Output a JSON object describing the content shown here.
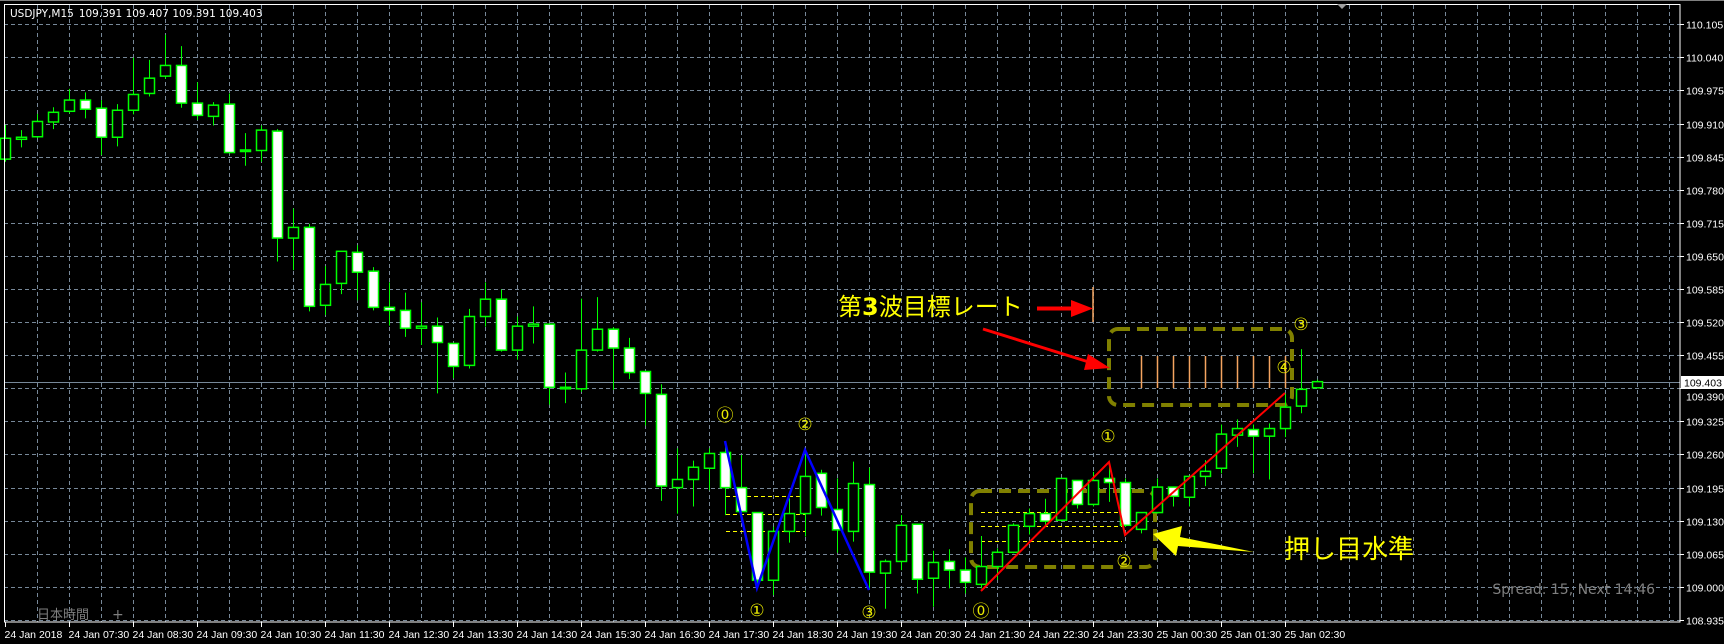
{
  "header": {
    "symbol": "USDJPY,M15",
    "ohlc_readout": "109.391 109.407 109.391 109.403"
  },
  "footer": {
    "timezone_label": "日本時間",
    "add_tab": "+",
    "spread_info": "Spread: 15, Next 14:46"
  },
  "colors": {
    "background": "#000000",
    "grid": "#778899",
    "candle_outline": "#00ff00",
    "bull_body": "#000000",
    "bear_body": "#ffffff",
    "price_line": "#778899",
    "wave_blue": "#0000ff",
    "wave_red": "#ff0000",
    "box": "#808000",
    "level_lines": "#ffff00",
    "target_lines": "#f4a460",
    "label_text": "#ffff00"
  },
  "chart_data": {
    "type": "candlestick",
    "symbol": "USDJPY",
    "timeframe": "M15",
    "grid": true,
    "ylim": [
      108.935,
      110.105
    ],
    "current_price": "109.403",
    "yticks": [
      "110.105",
      "110.040",
      "109.975",
      "109.910",
      "109.845",
      "109.780",
      "109.715",
      "109.650",
      "109.585",
      "109.520",
      "109.455",
      "109.390",
      "109.325",
      "109.260",
      "109.195",
      "109.130",
      "109.065",
      "109.000",
      "108.935"
    ],
    "xticks": [
      "24 Jan 2018",
      "24 Jan 07:30",
      "24 Jan 08:30",
      "24 Jan 09:30",
      "24 Jan 10:30",
      "24 Jan 11:30",
      "24 Jan 12:30",
      "24 Jan 13:30",
      "24 Jan 14:30",
      "24 Jan 15:30",
      "24 Jan 16:30",
      "24 Jan 17:30",
      "24 Jan 18:30",
      "24 Jan 19:30",
      "24 Jan 20:30",
      "24 Jan 21:30",
      "24 Jan 22:30",
      "24 Jan 23:30",
      "25 Jan 00:30",
      "25 Jan 01:30",
      "25 Jan 02:30"
    ],
    "candles_columns": [
      "time",
      "open",
      "high",
      "low",
      "close"
    ],
    "candles": [
      [
        "24 Jan 06:30",
        109.84,
        109.907,
        109.835,
        109.881
      ],
      [
        "24 Jan 06:45",
        109.879,
        109.897,
        109.863,
        109.883
      ],
      [
        "24 Jan 07:00",
        109.884,
        109.929,
        109.881,
        109.914
      ],
      [
        "24 Jan 07:15",
        109.913,
        109.942,
        109.899,
        109.932
      ],
      [
        "24 Jan 07:30",
        109.934,
        109.978,
        109.93,
        109.956
      ],
      [
        "24 Jan 07:45",
        109.956,
        109.971,
        109.92,
        109.938
      ],
      [
        "24 Jan 08:00",
        109.94,
        109.956,
        109.848,
        109.883
      ],
      [
        "24 Jan 08:15",
        109.883,
        109.948,
        109.865,
        109.936
      ],
      [
        "24 Jan 08:30",
        109.936,
        110.039,
        109.928,
        109.967
      ],
      [
        "24 Jan 08:45",
        109.969,
        110.035,
        109.963,
        109.999
      ],
      [
        "24 Jan 09:00",
        110.003,
        110.084,
        109.998,
        110.024
      ],
      [
        "24 Jan 09:15",
        110.024,
        110.062,
        109.941,
        109.95
      ],
      [
        "24 Jan 09:30",
        109.95,
        109.991,
        109.917,
        109.926
      ],
      [
        "24 Jan 09:45",
        109.924,
        109.952,
        109.906,
        109.946
      ],
      [
        "24 Jan 10:00",
        109.948,
        109.969,
        109.851,
        109.853
      ],
      [
        "24 Jan 10:15",
        109.855,
        109.891,
        109.827,
        109.858
      ],
      [
        "24 Jan 10:30",
        109.857,
        109.906,
        109.835,
        109.897
      ],
      [
        "24 Jan 10:45",
        109.895,
        109.899,
        109.639,
        109.685
      ],
      [
        "24 Jan 11:00",
        109.685,
        109.743,
        109.622,
        109.706
      ],
      [
        "24 Jan 11:15",
        109.706,
        109.713,
        109.541,
        109.551
      ],
      [
        "24 Jan 11:30",
        109.553,
        109.63,
        109.534,
        109.594
      ],
      [
        "24 Jan 11:45",
        109.596,
        109.659,
        109.575,
        109.659
      ],
      [
        "24 Jan 12:00",
        109.657,
        109.671,
        109.563,
        109.618
      ],
      [
        "24 Jan 12:15",
        109.62,
        109.628,
        109.543,
        109.549
      ],
      [
        "24 Jan 12:30",
        109.549,
        109.598,
        109.513,
        109.543
      ],
      [
        "24 Jan 12:45",
        109.543,
        109.578,
        109.491,
        109.508
      ],
      [
        "24 Jan 13:00",
        109.508,
        109.559,
        109.475,
        109.512
      ],
      [
        "24 Jan 13:15",
        109.512,
        109.529,
        109.38,
        109.48
      ],
      [
        "24 Jan 13:30",
        109.478,
        109.478,
        109.41,
        109.433
      ],
      [
        "24 Jan 13:45",
        109.435,
        109.546,
        109.429,
        109.531
      ],
      [
        "24 Jan 14:00",
        109.531,
        109.598,
        109.511,
        109.565
      ],
      [
        "24 Jan 14:15",
        109.565,
        109.584,
        109.462,
        109.465
      ],
      [
        "24 Jan 14:30",
        109.465,
        109.531,
        109.446,
        109.512
      ],
      [
        "24 Jan 14:45",
        109.512,
        109.551,
        109.478,
        109.516
      ],
      [
        "24 Jan 15:00",
        109.516,
        109.516,
        109.358,
        109.392
      ],
      [
        "24 Jan 15:15",
        109.389,
        109.421,
        109.361,
        109.392
      ],
      [
        "24 Jan 15:30",
        109.389,
        109.566,
        109.383,
        109.465
      ],
      [
        "24 Jan 15:45",
        109.465,
        109.569,
        109.462,
        109.506
      ],
      [
        "24 Jan 16:00",
        109.506,
        109.51,
        109.387,
        109.469
      ],
      [
        "24 Jan 16:15",
        109.469,
        109.489,
        109.408,
        109.421
      ],
      [
        "24 Jan 16:30",
        109.423,
        109.423,
        109.317,
        109.38
      ],
      [
        "24 Jan 16:45",
        109.378,
        109.398,
        109.169,
        109.198
      ],
      [
        "24 Jan 17:00",
        109.195,
        109.272,
        109.144,
        109.211
      ],
      [
        "24 Jan 17:15",
        109.211,
        109.248,
        109.158,
        109.235
      ],
      [
        "24 Jan 17:30",
        109.233,
        109.272,
        109.19,
        109.262
      ],
      [
        "24 Jan 17:45",
        109.264,
        109.282,
        109.141,
        109.195
      ],
      [
        "24 Jan 18:00",
        109.195,
        109.259,
        109.148,
        109.148
      ],
      [
        "24 Jan 18:15",
        109.146,
        109.146,
        108.997,
        109.013
      ],
      [
        "24 Jan 18:30",
        109.013,
        109.118,
        108.984,
        109.109
      ],
      [
        "24 Jan 18:45",
        109.109,
        109.174,
        109.087,
        109.144
      ],
      [
        "24 Jan 19:00",
        109.144,
        109.269,
        109.099,
        109.217
      ],
      [
        "24 Jan 19:15",
        109.223,
        109.23,
        109.14,
        109.156
      ],
      [
        "24 Jan 19:30",
        109.152,
        109.213,
        109.067,
        109.112
      ],
      [
        "24 Jan 19:45",
        109.109,
        109.246,
        109.089,
        109.203
      ],
      [
        "24 Jan 20:00",
        109.201,
        109.234,
        108.994,
        109.029
      ],
      [
        "24 Jan 20:15",
        109.027,
        109.054,
        108.957,
        109.05
      ],
      [
        "24 Jan 20:30",
        109.05,
        109.141,
        109.033,
        109.121
      ],
      [
        "24 Jan 20:45",
        109.123,
        109.123,
        108.987,
        109.015
      ],
      [
        "24 Jan 21:00",
        109.017,
        109.071,
        108.961,
        109.048
      ],
      [
        "24 Jan 21:15",
        109.05,
        109.074,
        108.997,
        109.033
      ],
      [
        "24 Jan 21:30",
        109.033,
        109.058,
        108.987,
        109.009
      ],
      [
        "24 Jan 21:45",
        109.005,
        109.1,
        108.997,
        109.04
      ],
      [
        "24 Jan 22:00",
        109.04,
        109.076,
        109.014,
        109.068
      ],
      [
        "24 Jan 22:15",
        109.068,
        109.125,
        109.066,
        109.121
      ],
      [
        "24 Jan 22:30",
        109.119,
        109.154,
        109.103,
        109.144
      ],
      [
        "24 Jan 22:45",
        109.144,
        109.173,
        109.118,
        109.129
      ],
      [
        "24 Jan 23:00",
        109.131,
        109.213,
        109.128,
        109.213
      ],
      [
        "24 Jan 23:15",
        109.209,
        109.209,
        109.154,
        109.162
      ],
      [
        "24 Jan 23:30",
        109.162,
        109.226,
        109.158,
        109.209
      ],
      [
        "24 Jan 23:45",
        109.213,
        109.243,
        109.167,
        109.205
      ],
      [
        "25 Jan 00:00",
        109.205,
        109.213,
        109.118,
        109.121
      ],
      [
        "25 Jan 00:15",
        109.113,
        109.146,
        109.105,
        109.146
      ],
      [
        "25 Jan 00:30",
        109.146,
        109.213,
        109.144,
        109.196
      ],
      [
        "25 Jan 00:45",
        109.196,
        109.196,
        109.158,
        109.178
      ],
      [
        "25 Jan 01:00",
        109.176,
        109.217,
        109.158,
        109.217
      ],
      [
        "25 Jan 01:15",
        109.217,
        109.249,
        109.198,
        109.227
      ],
      [
        "25 Jan 01:30",
        109.233,
        109.319,
        109.223,
        109.3
      ],
      [
        "25 Jan 01:45",
        109.298,
        109.329,
        109.275,
        109.311
      ],
      [
        "25 Jan 02:00",
        109.309,
        109.319,
        109.223,
        109.296
      ],
      [
        "25 Jan 02:15",
        109.296,
        109.321,
        109.211,
        109.311
      ],
      [
        "25 Jan 02:30",
        109.311,
        109.38,
        109.294,
        109.353
      ],
      [
        "25 Jan 02:45",
        109.355,
        109.467,
        109.341,
        109.388
      ],
      [
        "25 Jan 03:00",
        109.391,
        109.407,
        109.391,
        109.403
      ]
    ],
    "annotations": {
      "target_label_prefix": "第",
      "target_label_number": "3",
      "target_label_suffix": "波目標レート",
      "pullback_label": "押し目水準",
      "blue_wave_labels": [
        "⓪",
        "①",
        "②",
        "③"
      ],
      "red_wave_labels": [
        "⓪",
        "①",
        "②",
        "③",
        "④"
      ]
    }
  }
}
